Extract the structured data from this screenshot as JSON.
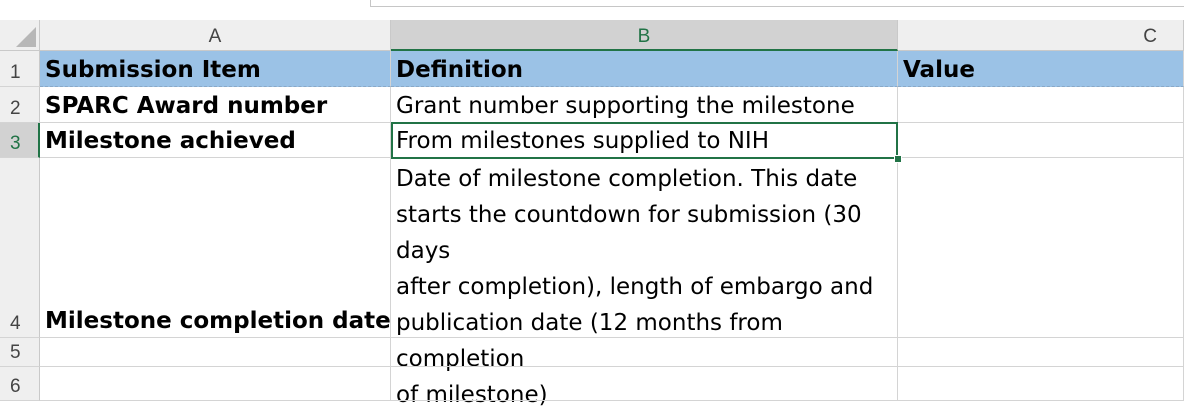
{
  "columns": [
    "A",
    "B",
    "C"
  ],
  "rows": [
    "1",
    "2",
    "3",
    "4",
    "5",
    "6"
  ],
  "cells": {
    "A1": "Submission Item",
    "B1": "Definition",
    "C1": "Value",
    "A2": "SPARC Award number",
    "B2": "Grant number supporting the milestone",
    "A3": "Milestone achieved",
    "B3": "From milestones supplied to NIH",
    "A4": "Milestone completion date",
    "B4": "Date of milestone completion. This date\nstarts the countdown for submission (30 days\nafter completion), length of embargo and\npublication date (12 months from completion\nof milestone)"
  },
  "selected_cell": "B3",
  "colors": {
    "header_fill": "#9bc2e6",
    "selection_green": "#217346",
    "header_bg": "#efefef"
  }
}
